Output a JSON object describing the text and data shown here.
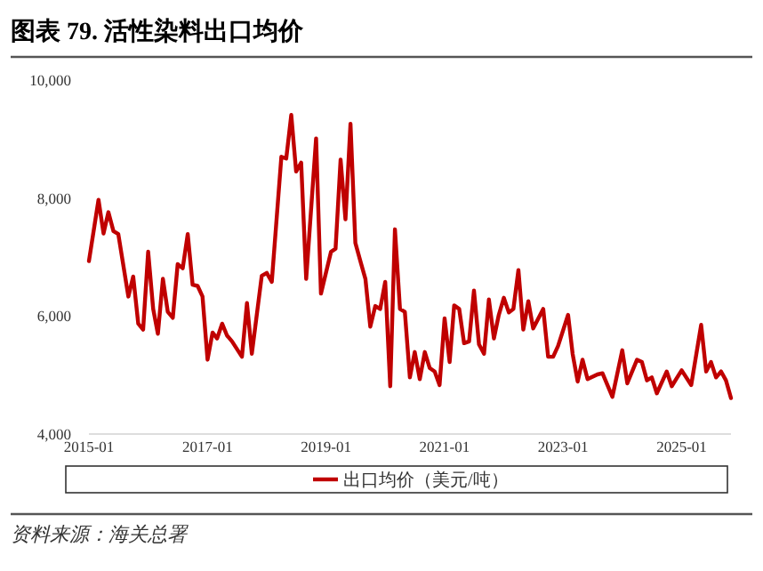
{
  "chart_data": {
    "type": "line",
    "title": "图表 79. 活性染料出口均价",
    "x": [
      "2015-01",
      "2015-03",
      "2015-04",
      "2015-05",
      "2015-06",
      "2015-07",
      "2015-09",
      "2015-10",
      "2015-11",
      "2015-12",
      "2016-01",
      "2016-02",
      "2016-03",
      "2016-04",
      "2016-05",
      "2016-06",
      "2016-07",
      "2016-08",
      "2016-09",
      "2016-10",
      "2016-11",
      "2016-12",
      "2017-01",
      "2017-02",
      "2017-03",
      "2017-04",
      "2017-05",
      "2017-06",
      "2017-08",
      "2017-09",
      "2017-10",
      "2017-12",
      "2018-01",
      "2018-02",
      "2018-04",
      "2018-05",
      "2018-06",
      "2018-07",
      "2018-08",
      "2018-09",
      "2018-11",
      "2018-12",
      "2019-02",
      "2019-03",
      "2019-04",
      "2019-05",
      "2019-06",
      "2019-07",
      "2019-08",
      "2019-09",
      "2019-10",
      "2019-11",
      "2019-12",
      "2020-01",
      "2020-02",
      "2020-03",
      "2020-04",
      "2020-05",
      "2020-06",
      "2020-07",
      "2020-08",
      "2020-09",
      "2020-10",
      "2020-11",
      "2020-12",
      "2021-01",
      "2021-02",
      "2021-03",
      "2021-04",
      "2021-05",
      "2021-06",
      "2021-07",
      "2021-08",
      "2021-09",
      "2021-10",
      "2021-11",
      "2021-12",
      "2022-01",
      "2022-02",
      "2022-03",
      "2022-04",
      "2022-05",
      "2022-06",
      "2022-07",
      "2022-09",
      "2022-10",
      "2022-11",
      "2022-12",
      "2023-02",
      "2023-03",
      "2023-04",
      "2023-05",
      "2023-06",
      "2023-08",
      "2023-09",
      "2023-11",
      "2024-01",
      "2024-02",
      "2024-04",
      "2024-05",
      "2024-06",
      "2024-07",
      "2024-08",
      "2024-10",
      "2024-11",
      "2025-01",
      "2025-03",
      "2025-05",
      "2025-06",
      "2025-07",
      "2025-08",
      "2025-09",
      "2025-10",
      "2025-11"
    ],
    "series": [
      {
        "name": "出口均价（美元/吨）",
        "color": "#c00000",
        "values": [
          6930,
          7970,
          7400,
          7760,
          7440,
          7390,
          6330,
          6670,
          5870,
          5770,
          7090,
          6120,
          5700,
          6630,
          6070,
          5970,
          6880,
          6810,
          7390,
          6530,
          6510,
          6330,
          5260,
          5720,
          5620,
          5870,
          5670,
          5570,
          5310,
          6220,
          5360,
          6680,
          6730,
          6580,
          8700,
          8670,
          9410,
          8450,
          8600,
          6630,
          9010,
          6380,
          7090,
          7140,
          8650,
          7640,
          9260,
          7240,
          6930,
          6630,
          5820,
          6170,
          6120,
          6580,
          4810,
          7470,
          6120,
          6070,
          4960,
          5390,
          4930,
          5390,
          5120,
          5060,
          4830,
          5960,
          5220,
          6180,
          6120,
          5540,
          5570,
          6430,
          5520,
          5360,
          6280,
          5620,
          6020,
          6310,
          6060,
          6120,
          6780,
          5770,
          6250,
          5790,
          6120,
          5310,
          5310,
          5490,
          6020,
          5360,
          4890,
          5260,
          4930,
          5010,
          5030,
          4630,
          5420,
          4860,
          5260,
          5220,
          4910,
          4960,
          4690,
          5060,
          4810,
          5080,
          4830,
          5850,
          5060,
          5220,
          4960,
          5060,
          4910,
          4610
        ]
      }
    ],
    "xlim": [
      "2015-01",
      "2025-11"
    ],
    "xticks": [
      {
        "value": "2015-01",
        "label": "2015-01"
      },
      {
        "value": "2017-01",
        "label": "2017-01"
      },
      {
        "value": "2019-01",
        "label": "2019-01"
      },
      {
        "value": "2021-01",
        "label": "2021-01"
      },
      {
        "value": "2023-01",
        "label": "2023-01"
      },
      {
        "value": "2025-01",
        "label": "2025-01"
      }
    ],
    "ylim": [
      4000,
      10000
    ],
    "yticks": [
      {
        "value": 4000,
        "label": "4,000"
      },
      {
        "value": 6000,
        "label": "6,000"
      },
      {
        "value": 8000,
        "label": "8,000"
      },
      {
        "value": 10000,
        "label": "10,000"
      }
    ],
    "grid": false,
    "legend": "bottom",
    "line_style": "solid",
    "marker": "none",
    "annotations": [
      "资料来源：海关总署"
    ]
  }
}
